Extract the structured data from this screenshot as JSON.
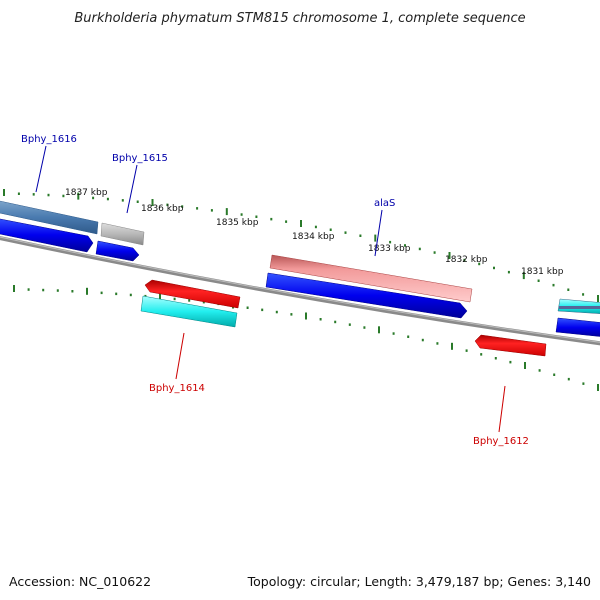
{
  "title": "Burkholderia phymatum STM815 chromosome 1, complete sequence",
  "footer": {
    "accession": "Accession: NC_010622",
    "summary": "Topology: circular; Length: 3,479,187 bp; Genes: 3,140"
  },
  "colors": {
    "backbone": "#7a7a7a",
    "ticks": "#2a7a2a",
    "forward_label": "#0000aa",
    "reverse_label": "#cc0000"
  },
  "ticks": [
    {
      "label": "1837 kbp"
    },
    {
      "label": "1836 kbp"
    },
    {
      "label": "1835 kbp"
    },
    {
      "label": "1834 kbp"
    },
    {
      "label": "1833 kbp"
    },
    {
      "label": "1832 kbp"
    },
    {
      "label": "1831 kbp"
    }
  ],
  "gene_labels": [
    {
      "text": "Bphy_1616",
      "strand": "forward"
    },
    {
      "text": "Bphy_1615",
      "strand": "forward"
    },
    {
      "text": "alaS",
      "strand": "forward"
    },
    {
      "text": "Bphy_1614",
      "strand": "reverse"
    },
    {
      "text": "Bphy_1612",
      "strand": "reverse"
    }
  ]
}
